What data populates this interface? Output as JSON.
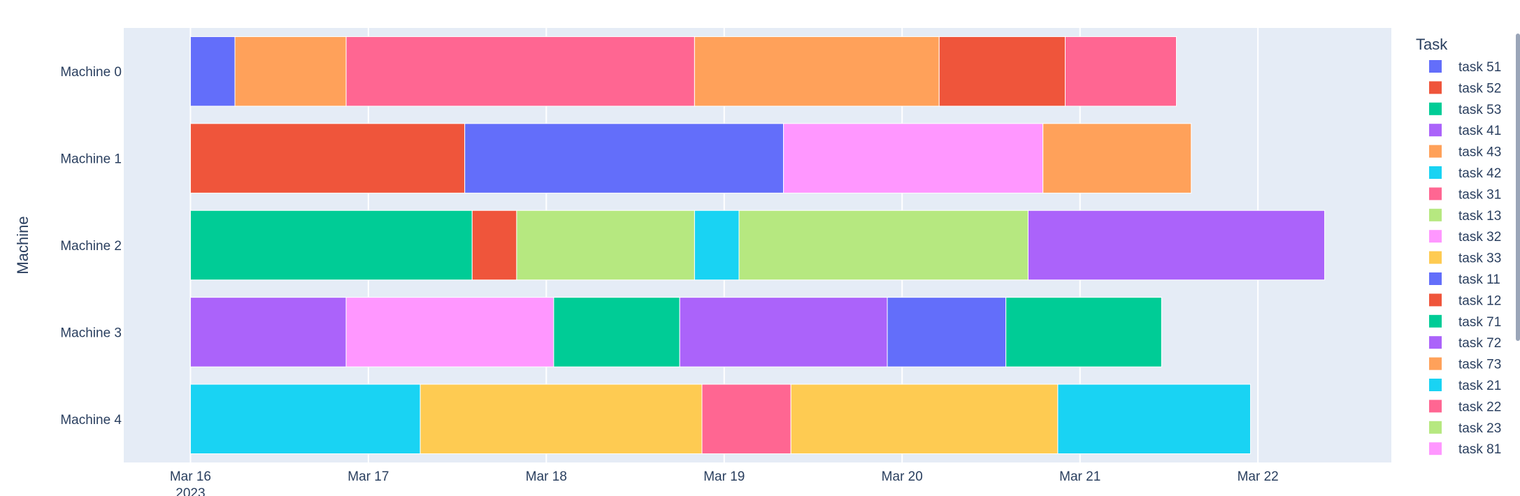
{
  "chart_data": {
    "type": "gantt",
    "title": "",
    "xlabel": "",
    "ylabel": "Machine",
    "x_range": [
      "2023-03-15T15:00",
      "2023-03-22T18:00"
    ],
    "x_ticks": [
      {
        "date": "2023-03-16",
        "label": "Mar 16",
        "sublabel": "2023"
      },
      {
        "date": "2023-03-17",
        "label": "Mar 17",
        "sublabel": ""
      },
      {
        "date": "2023-03-18",
        "label": "Mar 18",
        "sublabel": ""
      },
      {
        "date": "2023-03-19",
        "label": "Mar 19",
        "sublabel": ""
      },
      {
        "date": "2023-03-20",
        "label": "Mar 20",
        "sublabel": ""
      },
      {
        "date": "2023-03-21",
        "label": "Mar 21",
        "sublabel": ""
      },
      {
        "date": "2023-03-22",
        "label": "Mar 22",
        "sublabel": ""
      }
    ],
    "categories": [
      "Machine 0",
      "Machine 1",
      "Machine 2",
      "Machine 3",
      "Machine 4"
    ],
    "legend": {
      "title": "Task",
      "position": "right",
      "entries": [
        {
          "name": "task 51",
          "color": "#636efa"
        },
        {
          "name": "task 52",
          "color": "#EF553B"
        },
        {
          "name": "task 53",
          "color": "#00cc96"
        },
        {
          "name": "task 41",
          "color": "#ab63fa"
        },
        {
          "name": "task 43",
          "color": "#FFA15A"
        },
        {
          "name": "task 42",
          "color": "#19d3f3"
        },
        {
          "name": "task 31",
          "color": "#FF6692"
        },
        {
          "name": "task 13",
          "color": "#B6E880"
        },
        {
          "name": "task 32",
          "color": "#FF97FF"
        },
        {
          "name": "task 33",
          "color": "#FECB52"
        },
        {
          "name": "task 11",
          "color": "#636efa"
        },
        {
          "name": "task 12",
          "color": "#EF553B"
        },
        {
          "name": "task 71",
          "color": "#00cc96"
        },
        {
          "name": "task 72",
          "color": "#ab63fa"
        },
        {
          "name": "task 73",
          "color": "#FFA15A"
        },
        {
          "name": "task 21",
          "color": "#19d3f3"
        },
        {
          "name": "task 22",
          "color": "#FF6692"
        },
        {
          "name": "task 23",
          "color": "#B6E880"
        },
        {
          "name": "task 81",
          "color": "#FF97FF"
        }
      ]
    },
    "tasks": [
      {
        "machine": "Machine 0",
        "start": "2023-03-16T00:00",
        "end": "2023-03-16T06:00",
        "color": "#636efa"
      },
      {
        "machine": "Machine 0",
        "start": "2023-03-16T06:00",
        "end": "2023-03-16T21:00",
        "color": "#FFA15A"
      },
      {
        "machine": "Machine 0",
        "start": "2023-03-16T21:00",
        "end": "2023-03-18T20:00",
        "color": "#FF6692"
      },
      {
        "machine": "Machine 0",
        "start": "2023-03-18T20:00",
        "end": "2023-03-20T05:00",
        "color": "#FFA15A"
      },
      {
        "machine": "Machine 0",
        "start": "2023-03-20T05:00",
        "end": "2023-03-20T22:00",
        "color": "#EF553B"
      },
      {
        "machine": "Machine 0",
        "start": "2023-03-20T22:00",
        "end": "2023-03-21T13:00",
        "color": "#FF6692"
      },
      {
        "machine": "Machine 1",
        "start": "2023-03-16T00:00",
        "end": "2023-03-17T13:00",
        "color": "#EF553B"
      },
      {
        "machine": "Machine 1",
        "start": "2023-03-17T13:00",
        "end": "2023-03-19T08:00",
        "color": "#636efa"
      },
      {
        "machine": "Machine 1",
        "start": "2023-03-19T08:00",
        "end": "2023-03-20T19:00",
        "color": "#FF97FF"
      },
      {
        "machine": "Machine 1",
        "start": "2023-03-20T19:00",
        "end": "2023-03-21T15:00",
        "color": "#FFA15A"
      },
      {
        "machine": "Machine 2",
        "start": "2023-03-16T00:00",
        "end": "2023-03-17T14:00",
        "color": "#00cc96"
      },
      {
        "machine": "Machine 2",
        "start": "2023-03-17T14:00",
        "end": "2023-03-17T20:00",
        "color": "#EF553B"
      },
      {
        "machine": "Machine 2",
        "start": "2023-03-17T20:00",
        "end": "2023-03-18T20:00",
        "color": "#B6E880"
      },
      {
        "machine": "Machine 2",
        "start": "2023-03-18T20:00",
        "end": "2023-03-19T02:00",
        "color": "#19d3f3"
      },
      {
        "machine": "Machine 2",
        "start": "2023-03-19T02:00",
        "end": "2023-03-20T17:00",
        "color": "#B6E880"
      },
      {
        "machine": "Machine 2",
        "start": "2023-03-20T17:00",
        "end": "2023-03-22T09:00",
        "color": "#ab63fa"
      },
      {
        "machine": "Machine 3",
        "start": "2023-03-16T00:00",
        "end": "2023-03-16T21:00",
        "color": "#ab63fa"
      },
      {
        "machine": "Machine 3",
        "start": "2023-03-16T21:00",
        "end": "2023-03-18T01:00",
        "color": "#FF97FF"
      },
      {
        "machine": "Machine 3",
        "start": "2023-03-18T01:00",
        "end": "2023-03-18T18:00",
        "color": "#00cc96"
      },
      {
        "machine": "Machine 3",
        "start": "2023-03-18T18:00",
        "end": "2023-03-19T22:00",
        "color": "#ab63fa"
      },
      {
        "machine": "Machine 3",
        "start": "2023-03-19T22:00",
        "end": "2023-03-20T14:00",
        "color": "#636efa"
      },
      {
        "machine": "Machine 3",
        "start": "2023-03-20T14:00",
        "end": "2023-03-21T11:00",
        "color": "#00cc96"
      },
      {
        "machine": "Machine 4",
        "start": "2023-03-16T00:00",
        "end": "2023-03-17T07:00",
        "color": "#19d3f3"
      },
      {
        "machine": "Machine 4",
        "start": "2023-03-17T07:00",
        "end": "2023-03-18T21:00",
        "color": "#FECB52"
      },
      {
        "machine": "Machine 4",
        "start": "2023-03-18T21:00",
        "end": "2023-03-19T09:00",
        "color": "#FF6692"
      },
      {
        "machine": "Machine 4",
        "start": "2023-03-19T09:00",
        "end": "2023-03-20T21:00",
        "color": "#FECB52"
      },
      {
        "machine": "Machine 4",
        "start": "2023-03-20T21:00",
        "end": "2023-03-21T23:00",
        "color": "#19d3f3"
      }
    ],
    "grid": true
  },
  "colors": {
    "plot_background": "#e5ecf6",
    "gridline": "#ffffff",
    "text": "#2a3f5f"
  }
}
